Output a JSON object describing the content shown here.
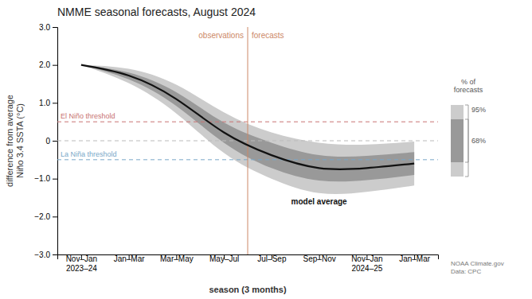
{
  "chart_data": {
    "type": "line",
    "title": "NMME seasonal forecasts, August 2024",
    "x_label": "season (3 months)",
    "y_label": "difference from average\nNiño 3.4 SSTA (°C)",
    "categories": [
      "Nov–Jan\n2023–24",
      "Jan–Mar",
      "Mar–May",
      "May–Jul",
      "Jul–Sep",
      "Sep–Nov",
      "Nov–Jan\n2024–25",
      "Jan–Mar"
    ],
    "ylim": [
      -3.0,
      3.0
    ],
    "yticks": [
      {
        "value": -3.0,
        "label": "−3.0"
      },
      {
        "value": -2.0,
        "label": "−2.0"
      },
      {
        "value": -1.0,
        "label": "−1.0"
      },
      0,
      {
        "value": 1.0,
        "label": "1.0"
      },
      {
        "value": 2.0,
        "label": "2.0"
      },
      {
        "value": 3.0,
        "label": "3.0"
      }
    ],
    "grid": false,
    "series": [
      {
        "name": "model average",
        "color": "#111111",
        "values": [
          2.0,
          1.72,
          1.1,
          0.22,
          -0.38,
          -0.72,
          -0.72,
          -0.6
        ]
      }
    ],
    "bands": [
      {
        "name": "95%",
        "color": "#cccccc",
        "upper": [
          2.0,
          1.9,
          1.48,
          0.75,
          0.22,
          -0.05,
          -0.1,
          -0.02
        ],
        "lower": [
          2.0,
          1.52,
          0.72,
          -0.32,
          -1.0,
          -1.38,
          -1.35,
          -1.18
        ]
      },
      {
        "name": "68%",
        "color": "#999999",
        "upper": [
          2.0,
          1.8,
          1.28,
          0.48,
          -0.05,
          -0.38,
          -0.4,
          -0.3
        ],
        "lower": [
          2.0,
          1.62,
          0.92,
          -0.05,
          -0.72,
          -1.05,
          -1.04,
          -0.9
        ]
      }
    ],
    "legend": "right",
    "legend_title": "% of\nforecasts",
    "reference_lines": [
      {
        "value": 0.5,
        "label": "El Niño threshold",
        "color": "#c87272"
      },
      {
        "value": -0.5,
        "label": "La Niña threshold",
        "color": "#7aa8c8"
      },
      {
        "value": 0,
        "color": "#bbbbbb"
      }
    ],
    "split": {
      "x": 3.5,
      "color": "#cc8866",
      "labels": [
        "observations",
        "forecasts"
      ]
    },
    "source": "NOAA Climate.gov\nData: CPC"
  }
}
